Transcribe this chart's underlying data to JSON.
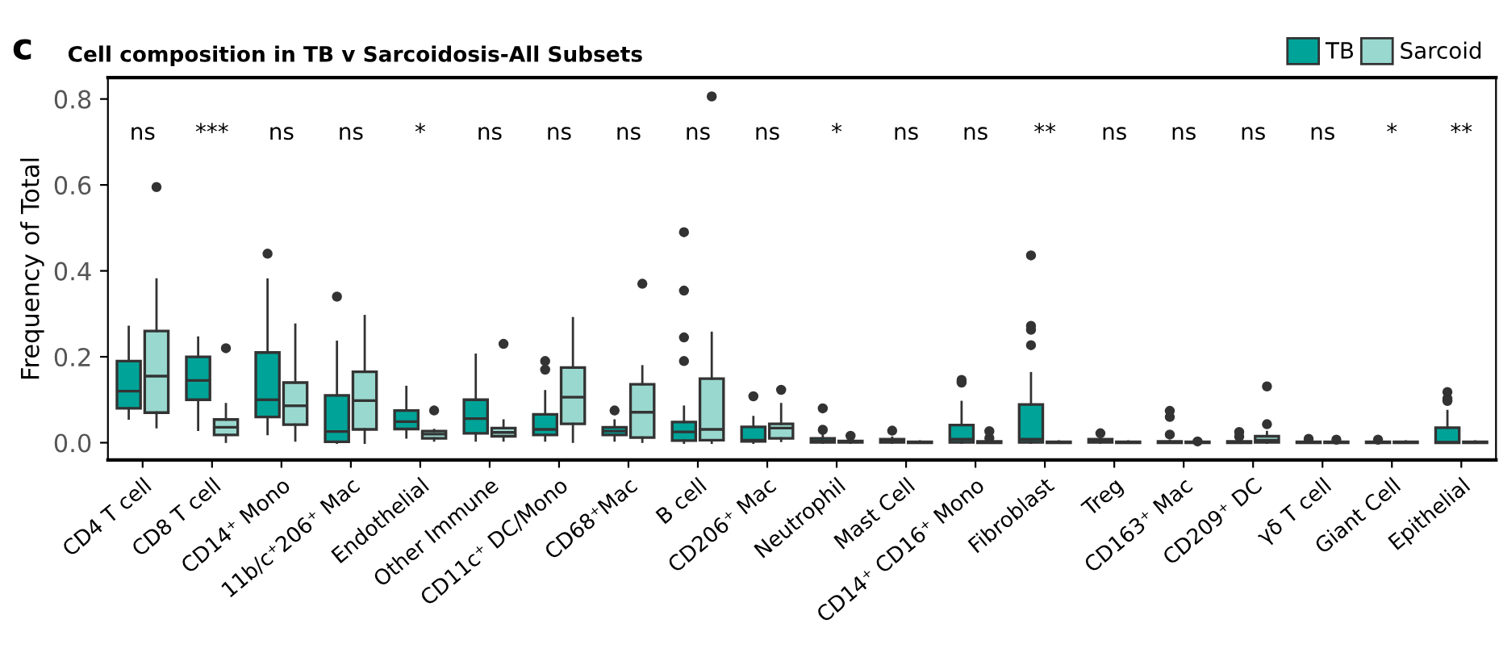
{
  "chart_data": {
    "type": "box",
    "title": "Cell composition in TB v Sarcoidosis-All Subsets",
    "ylabel": "Frequency of Total",
    "categories": [
      "CD4 T cell",
      "CD8 T cell",
      "CD14⁺ Mono",
      "11b/c⁺206⁺ Mac",
      "Endothelial",
      "Other Immune",
      "CD11c⁺ DC/Mono",
      "CD68⁺Mac",
      "B cell",
      "CD206⁺ Mac",
      "Neutrophil",
      "Mast Cell",
      "CD14⁺ CD16⁺ Mono",
      "Fibroblast",
      "Treg",
      "CD163⁺ Mac",
      "CD209⁺ DC",
      "γδ T cell",
      "Giant Cell",
      "Epithelial"
    ],
    "ylim": [
      -0.04,
      0.85
    ],
    "yticks": [
      {
        "value": 0,
        "label": "0.0"
      },
      {
        "value": 0.2,
        "label": "0.2"
      },
      {
        "value": 0.4,
        "label": "0.4"
      },
      {
        "value": 0.6,
        "label": "0.6"
      },
      {
        "value": 0.8,
        "label": "0.8"
      }
    ],
    "grid": false,
    "legend": "top right",
    "series": [
      {
        "name": "TB",
        "color": "#00a398",
        "boxes": [
          {
            "low": 0.056,
            "q1": 0.08,
            "median": 0.12,
            "q3": 0.19,
            "high": 0.27
          },
          {
            "low": 0.03,
            "q1": 0.1,
            "median": 0.145,
            "q3": 0.2,
            "high": 0.245
          },
          {
            "low": 0.02,
            "q1": 0.06,
            "median": 0.1,
            "q3": 0.21,
            "high": 0.38,
            "outliers": [
              0.44
            ]
          },
          {
            "low": 0,
            "q1": 0.002,
            "median": 0.026,
            "q3": 0.11,
            "high": 0.235,
            "outliers": [
              0.34
            ]
          },
          {
            "low": 0.012,
            "q1": 0.032,
            "median": 0.049,
            "q3": 0.075,
            "high": 0.13
          },
          {
            "low": 0.005,
            "q1": 0.022,
            "median": 0.056,
            "q3": 0.1,
            "high": 0.205
          },
          {
            "low": 0.005,
            "q1": 0.018,
            "median": 0.031,
            "q3": 0.066,
            "high": 0.12,
            "outliers": [
              0.17,
              0.19
            ]
          },
          {
            "low": 0.005,
            "q1": 0.018,
            "median": 0.027,
            "q3": 0.036,
            "high": 0.052,
            "outliers": [
              0.075
            ]
          },
          {
            "low": 0,
            "q1": 0.005,
            "median": 0.025,
            "q3": 0.048,
            "high": 0.084,
            "outliers": [
              0.19,
              0.245,
              0.354,
              0.49
            ]
          },
          {
            "low": 0,
            "q1": 0.003,
            "median": 0.006,
            "q3": 0.037,
            "high": 0.06,
            "outliers": [
              0.108
            ]
          },
          {
            "low": 0,
            "q1": 0.001,
            "median": 0.004,
            "q3": 0.01,
            "high": 0.02,
            "outliers": [
              0.03,
              0.08
            ]
          },
          {
            "low": 0,
            "q1": 0.001,
            "median": 0.003,
            "q3": 0.008,
            "high": 0.012,
            "outliers": [
              0.028
            ]
          },
          {
            "low": 0,
            "q1": 0.001,
            "median": 0.008,
            "q3": 0.041,
            "high": 0.095,
            "outliers": [
              0.14,
              0.146
            ]
          },
          {
            "low": 0,
            "q1": 0.001,
            "median": 0.008,
            "q3": 0.089,
            "high": 0.162,
            "outliers": [
              0.227,
              0.263,
              0.272,
              0.436
            ]
          },
          {
            "low": 0,
            "q1": 0.001,
            "median": 0.004,
            "q3": 0.008,
            "high": 0.01,
            "outliers": [
              0.022
            ]
          },
          {
            "low": 0,
            "q1": 0,
            "median": 0.001,
            "q3": 0.003,
            "high": 0.004,
            "outliers": [
              0.019,
              0.06,
              0.074
            ]
          },
          {
            "low": 0,
            "q1": 0,
            "median": 0.001,
            "q3": 0.003,
            "high": 0.005,
            "outliers": [
              0.014,
              0.025
            ]
          },
          {
            "low": 0,
            "q1": 0,
            "median": 0.001,
            "q3": 0.002,
            "high": 0.003,
            "outliers": [
              0.009
            ]
          },
          {
            "low": 0,
            "q1": 0,
            "median": 0.001,
            "q3": 0.002,
            "high": 0.003,
            "outliers": [
              0.007
            ]
          },
          {
            "low": 0,
            "q1": 0,
            "median": 0.001,
            "q3": 0.035,
            "high": 0.074,
            "outliers": [
              0.097,
              0.103,
              0.118
            ]
          }
        ]
      },
      {
        "name": "Sarcoid",
        "color": "#99d8cf",
        "boxes": [
          {
            "low": 0.036,
            "q1": 0.07,
            "median": 0.155,
            "q3": 0.26,
            "high": 0.38,
            "outliers": [
              0.595
            ]
          },
          {
            "low": 0.002,
            "q1": 0.018,
            "median": 0.036,
            "q3": 0.054,
            "high": 0.09,
            "outliers": [
              0.22
            ]
          },
          {
            "low": 0.005,
            "q1": 0.042,
            "median": 0.086,
            "q3": 0.14,
            "high": 0.275
          },
          {
            "low": 0,
            "q1": 0.031,
            "median": 0.098,
            "q3": 0.165,
            "high": 0.295
          },
          {
            "low": 0.005,
            "q1": 0.01,
            "median": 0.02,
            "q3": 0.027,
            "high": 0.03,
            "outliers": [
              0.075
            ]
          },
          {
            "low": 0.005,
            "q1": 0.015,
            "median": 0.024,
            "q3": 0.034,
            "high": 0.052,
            "outliers": [
              0.23
            ]
          },
          {
            "low": 0.002,
            "q1": 0.044,
            "median": 0.106,
            "q3": 0.175,
            "high": 0.29
          },
          {
            "low": 0.002,
            "q1": 0.012,
            "median": 0.071,
            "q3": 0.136,
            "high": 0.178,
            "outliers": [
              0.37
            ]
          },
          {
            "low": 0,
            "q1": 0.006,
            "median": 0.031,
            "q3": 0.149,
            "high": 0.256,
            "outliers": [
              0.806
            ]
          },
          {
            "low": 0.004,
            "q1": 0.01,
            "median": 0.034,
            "q3": 0.044,
            "high": 0.09,
            "outliers": [
              0.123
            ]
          },
          {
            "low": 0,
            "q1": 0.001,
            "median": 0.002,
            "q3": 0.004,
            "high": 0.006,
            "outliers": [
              0.016
            ]
          },
          {
            "low": 0,
            "q1": 0,
            "median": 0.001,
            "q3": 0.002,
            "high": 0.003
          },
          {
            "low": 0,
            "q1": 0,
            "median": 0.001,
            "q3": 0.003,
            "high": 0.004,
            "outliers": [
              0.011,
              0.027
            ]
          },
          {
            "low": 0,
            "q1": 0,
            "median": 0.001,
            "q3": 0.002,
            "high": 0.003
          },
          {
            "low": 0,
            "q1": 0,
            "median": 0.001,
            "q3": 0.002,
            "high": 0.003
          },
          {
            "low": 0,
            "q1": 0,
            "median": 0.001,
            "q3": 0.002,
            "high": 0.003,
            "outliers": [
              0.003
            ]
          },
          {
            "low": 0,
            "q1": 0.001,
            "median": 0.006,
            "q3": 0.015,
            "high": 0.025,
            "outliers": [
              0.043,
              0.131
            ]
          },
          {
            "low": 0,
            "q1": 0,
            "median": 0.001,
            "q3": 0.002,
            "high": 0.003,
            "outliers": [
              0.007
            ]
          },
          {
            "low": 0,
            "q1": 0,
            "median": 0.001,
            "q3": 0.002,
            "high": 0.003
          },
          {
            "low": 0,
            "q1": 0,
            "median": 0.001,
            "q3": 0.002,
            "high": 0.003
          }
        ]
      }
    ],
    "annotations": [
      "c",
      "ns",
      "***",
      "ns",
      "ns",
      "*",
      "ns",
      "ns",
      "ns",
      "ns",
      "ns",
      "*",
      "ns",
      "ns",
      "**",
      "ns",
      "ns",
      "ns",
      "ns",
      "*",
      "**"
    ]
  }
}
